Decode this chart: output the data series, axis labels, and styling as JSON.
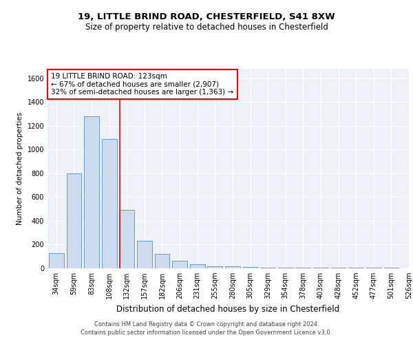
{
  "title1": "19, LITTLE BRIND ROAD, CHESTERFIELD, S41 8XW",
  "title2": "Size of property relative to detached houses in Chesterfield",
  "xlabel": "Distribution of detached houses by size in Chesterfield",
  "ylabel": "Number of detached properties",
  "footer1": "Contains HM Land Registry data © Crown copyright and database right 2024.",
  "footer2": "Contains public sector information licensed under the Open Government Licence v3.0.",
  "bins": [
    "34sqm",
    "59sqm",
    "83sqm",
    "108sqm",
    "132sqm",
    "157sqm",
    "182sqm",
    "206sqm",
    "231sqm",
    "255sqm",
    "280sqm",
    "305sqm",
    "329sqm",
    "354sqm",
    "378sqm",
    "403sqm",
    "428sqm",
    "452sqm",
    "477sqm",
    "501sqm",
    "526sqm"
  ],
  "values": [
    130,
    800,
    1280,
    1090,
    490,
    230,
    120,
    65,
    35,
    20,
    15,
    10,
    5,
    5,
    5,
    5,
    5,
    5,
    5,
    5
  ],
  "bar_color": "#ccdcee",
  "bar_edge_color": "#6699cc",
  "vline_color": "red",
  "vline_x": 3.6,
  "annotation_text": "19 LITTLE BRIND ROAD: 123sqm\n← 67% of detached houses are smaller (2,907)\n32% of semi-detached houses are larger (1,363) →",
  "annotation_box_color": "white",
  "annotation_box_edge": "red",
  "ylim": [
    0,
    1680
  ],
  "yticks": [
    0,
    200,
    400,
    600,
    800,
    1000,
    1200,
    1400,
    1600
  ],
  "background_color": "#eef2f8",
  "grid_color": "white",
  "title1_fontsize": 9.5,
  "title2_fontsize": 8.5,
  "xlabel_fontsize": 8.5,
  "ylabel_fontsize": 7.5,
  "tick_fontsize": 7,
  "annotation_fontsize": 7.5,
  "footer_fontsize": 6
}
